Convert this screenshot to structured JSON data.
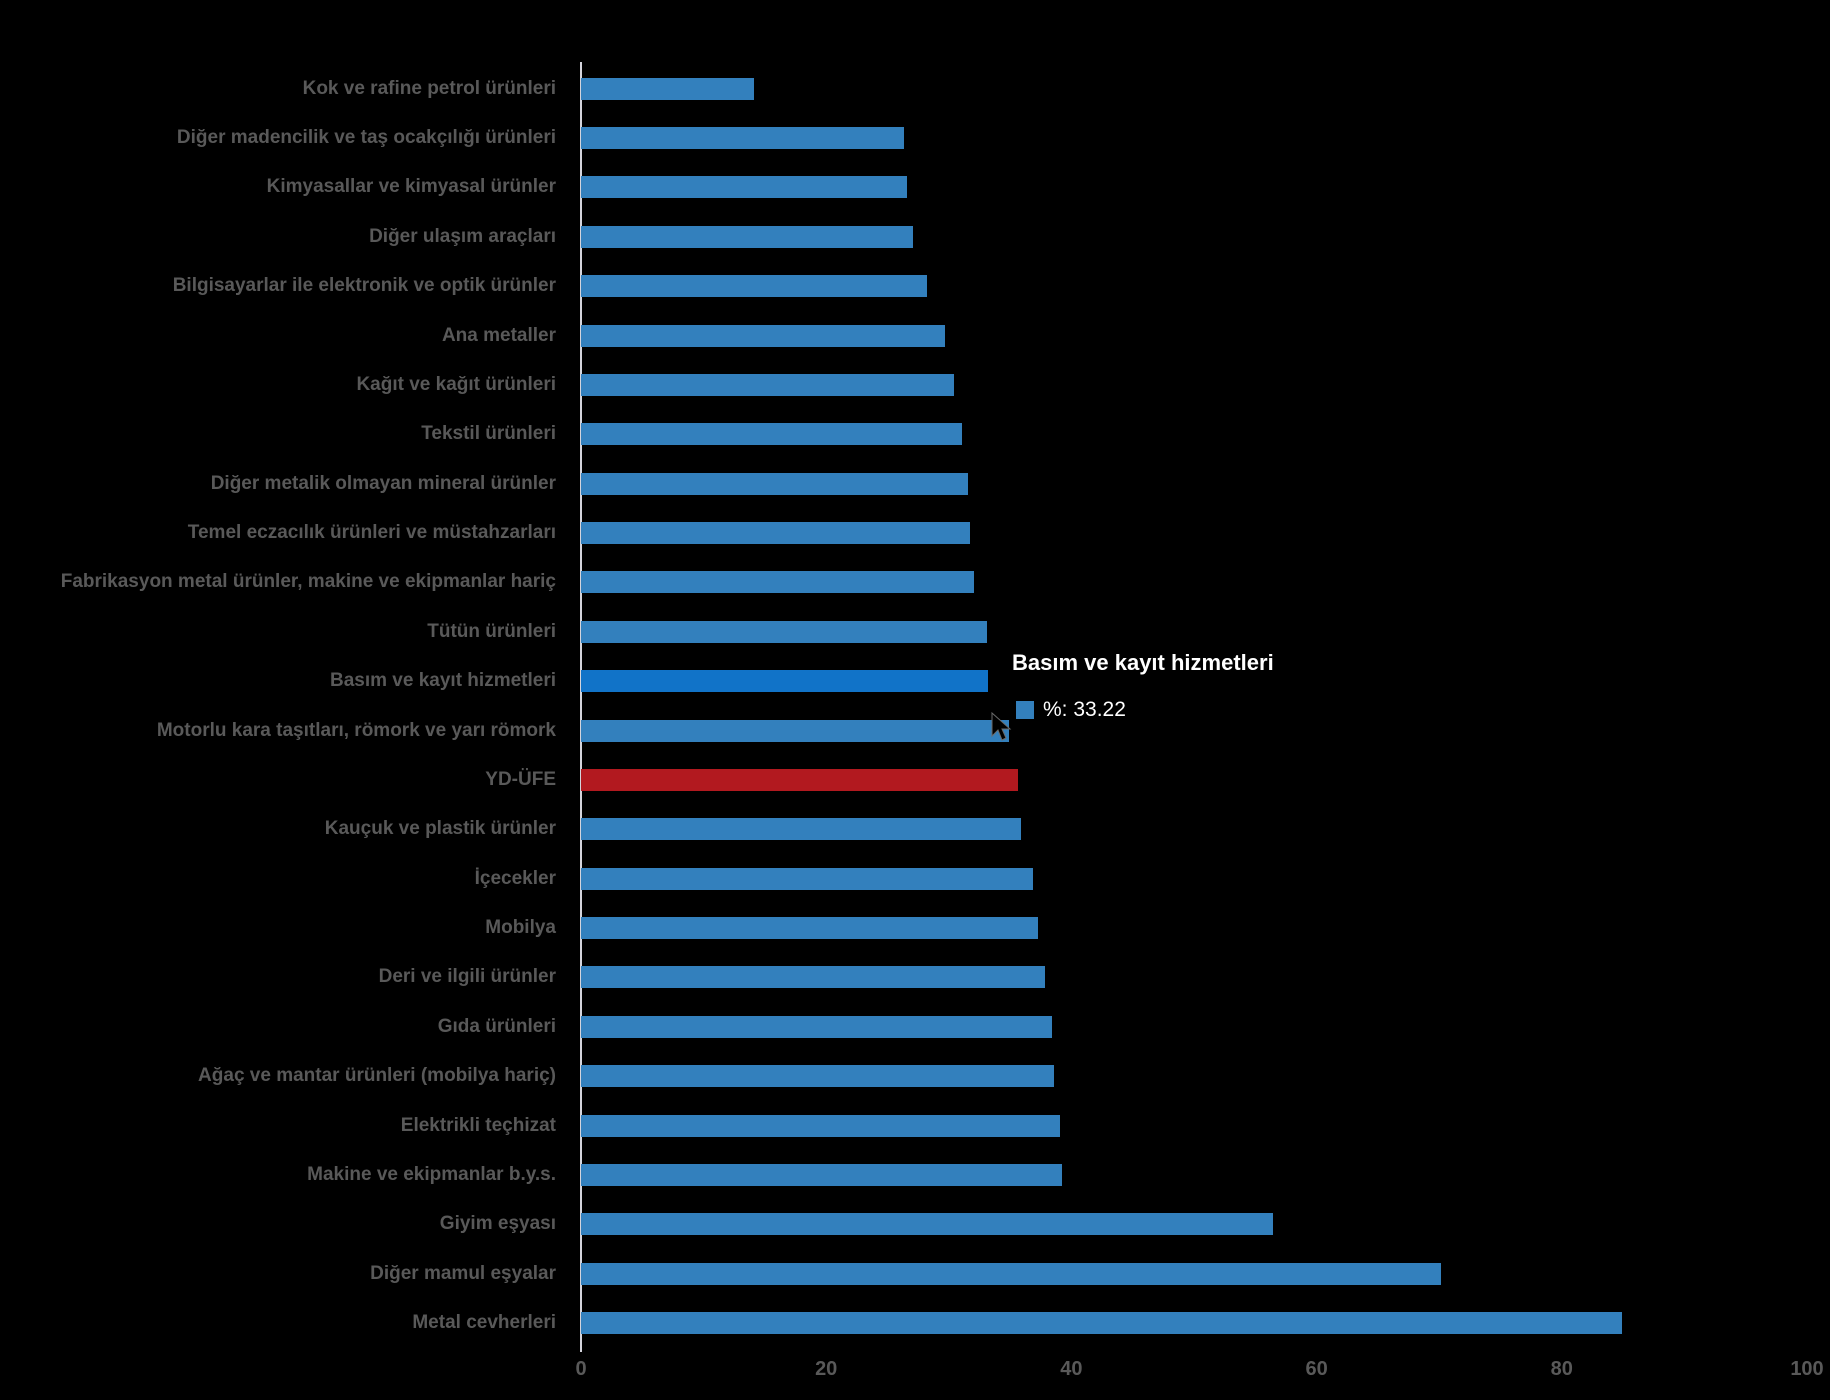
{
  "colors": {
    "background": "#000000",
    "bar_default": "#3380bd",
    "bar_highlight": "#1173c8",
    "bar_red": "#b2191f",
    "category_label_text": "#595959",
    "axis_line": "#d4d4dc",
    "tick_text": "#595959",
    "tooltip_text": "#ffffff"
  },
  "chart_data": {
    "type": "bar",
    "orientation": "horizontal",
    "categories": [
      "Kok ve rafine petrol ürünleri",
      "Diğer madencilik ve taş ocakçılığı ürünleri",
      "Kimyasallar ve kimyasal ürünler",
      "Diğer ulaşım araçları",
      "Bilgisayarlar ile elektronik ve optik ürünler",
      "Ana metaller",
      "Kağıt ve kağıt ürünleri",
      "Tekstil ürünleri",
      "Diğer metalik olmayan mineral ürünler",
      "Temel eczacılık ürünleri ve müstahzarları",
      "Fabrikasyon metal ürünler, makine ve ekipmanlar hariç",
      "Tütün ürünleri",
      "Basım ve kayıt hizmetleri",
      "Motorlu kara taşıtları, römork ve yarı römork",
      "YD-ÜFE",
      "Kauçuk ve plastik ürünler",
      "İçecekler",
      "Mobilya",
      "Deri ve ilgili ürünler",
      "Gıda ürünleri",
      "Ağaç ve mantar ürünleri (mobilya hariç)",
      "Elektrikli teçhizat",
      "Makine ve ekipmanlar b.y.s.",
      "Giyim eşyası",
      "Diğer mamul eşyalar",
      "Metal cevherleri"
    ],
    "values": [
      14.14,
      26.37,
      26.62,
      27.11,
      28.25,
      29.71,
      30.45,
      31.1,
      31.58,
      31.7,
      32.02,
      33.1,
      33.22,
      34.92,
      35.68,
      35.92,
      36.9,
      37.3,
      37.88,
      38.38,
      38.62,
      39.07,
      39.22,
      56.41,
      70.18,
      84.9
    ],
    "highlight_index": 12,
    "red_index": 14,
    "xlim": [
      0,
      100
    ],
    "x_ticks": [
      "0",
      "20",
      "40",
      "60",
      "80",
      "100"
    ],
    "x_tick_values": [
      0,
      20,
      40,
      60,
      80,
      100
    ],
    "grid": false,
    "legend": false
  },
  "tooltip": {
    "title": "Basım ve kayıt hizmetleri",
    "value_label": "%: 33.22"
  }
}
